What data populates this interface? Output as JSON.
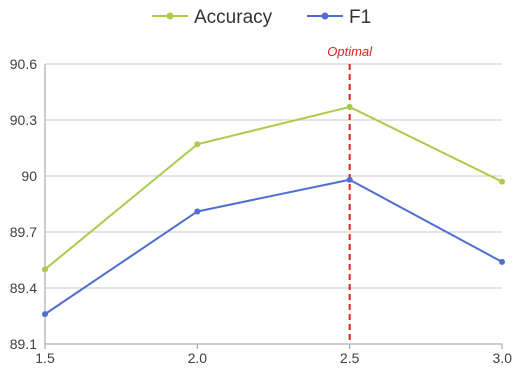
{
  "chart_data": {
    "type": "line",
    "title": "",
    "xlabel": "",
    "ylabel": "",
    "x": [
      1.5,
      2.0,
      2.5,
      3.0
    ],
    "x_tick_labels": [
      "1.5",
      "2.0",
      "2.5",
      "3.0"
    ],
    "xlim": [
      1.5,
      3.0
    ],
    "ylim": [
      89.1,
      90.6
    ],
    "y_ticks": [
      89.1,
      89.4,
      89.7,
      90,
      90.3,
      90.6
    ],
    "y_tick_labels": [
      "89.1",
      "89.4",
      "89.7",
      "90",
      "90.3",
      "90.6"
    ],
    "grid": "horizontal",
    "legend_position": "top-center",
    "series": [
      {
        "name": "Accuracy",
        "color": "#a9cc4a",
        "values": [
          89.5,
          90.17,
          90.37,
          89.97
        ]
      },
      {
        "name": "F1",
        "color": "#4e6fcf",
        "values": [
          89.26,
          89.81,
          89.98,
          89.54
        ]
      }
    ],
    "annotations": [
      {
        "type": "vline",
        "x": 2.5,
        "label": "Optimal",
        "color": "#d9251d"
      }
    ]
  }
}
